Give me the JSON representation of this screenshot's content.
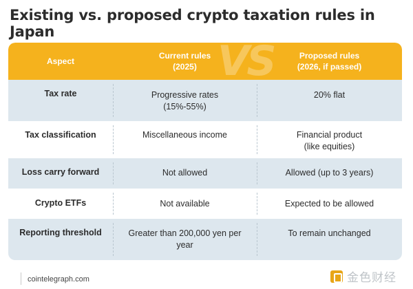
{
  "title": "Existing vs. proposed crypto taxation rules in Japan",
  "vs_mark": "VS",
  "headers": {
    "aspect": "Aspect",
    "current_line1": "Current rules",
    "current_line2": "(2025)",
    "proposed_line1": "Proposed rules",
    "proposed_line2": "(2026, if passed)"
  },
  "rows": [
    {
      "aspect": "Tax rate",
      "current_l1": "Progressive rates",
      "current_l2": "(15%-55%)",
      "proposed_l1": "20% flat",
      "proposed_l2": ""
    },
    {
      "aspect": "Tax classification",
      "current_l1": "Miscellaneous income",
      "current_l2": "",
      "proposed_l1": "Financial product",
      "proposed_l2": "(like equities)"
    },
    {
      "aspect": "Loss carry forward",
      "current_l1": "Not allowed",
      "current_l2": "",
      "proposed_l1": "Allowed (up to 3 years)",
      "proposed_l2": ""
    },
    {
      "aspect": "Crypto ETFs",
      "current_l1": "Not available",
      "current_l2": "",
      "proposed_l1": "Expected to be allowed",
      "proposed_l2": ""
    },
    {
      "aspect": "Reporting threshold",
      "current_l1": "Greater than 200,000 yen per",
      "current_l2": "year",
      "proposed_l1": "To remain unchanged",
      "proposed_l2": ""
    }
  ],
  "footer": {
    "source": "cointelegraph.com",
    "watermark": "金色财经"
  },
  "colors": {
    "header_bg": "#f5b21d",
    "shaded_row": "#dde7ee",
    "watermark_logo": "#e8a516"
  }
}
